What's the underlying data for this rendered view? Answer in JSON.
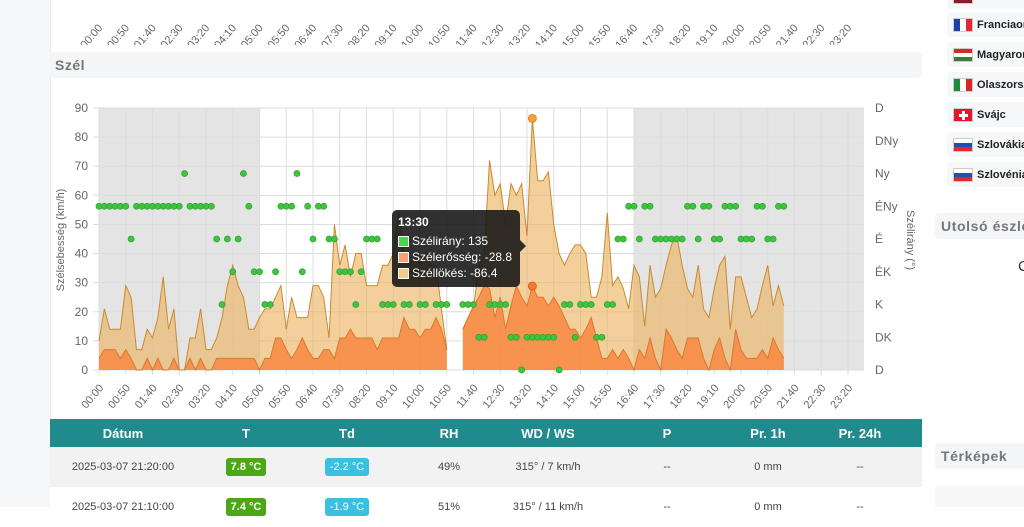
{
  "previous_chart": {
    "x_ticks": [
      "00:00",
      "00:50",
      "01:40",
      "02:30",
      "03:20",
      "04:10",
      "05:00",
      "05:50",
      "06:40",
      "07:30",
      "08:20",
      "09:10",
      "10:00",
      "10:50",
      "11:40",
      "12:30",
      "13:20",
      "14:10",
      "15:00",
      "15:50",
      "16:40",
      "17:30",
      "18:20",
      "19:10",
      "20:00",
      "20:50",
      "21:40",
      "22:30",
      "23:20"
    ]
  },
  "section": {
    "title": "Szél"
  },
  "chart_data": {
    "type": "area",
    "ylabel": "Szélsebesség (km/h)",
    "y2label": "Szélirány (°)",
    "ylim": [
      0,
      90
    ],
    "y_ticks": [
      0,
      10,
      20,
      30,
      40,
      50,
      60,
      70,
      80,
      90
    ],
    "y2_ticks": [
      "D",
      "DK",
      "K",
      "ÉK",
      "É",
      "ÉNy",
      "Ny",
      "DNy",
      "D"
    ],
    "y2_degrees": [
      180,
      135,
      90,
      45,
      0,
      315,
      270,
      225,
      180
    ],
    "x_ticks": [
      "00:00",
      "00:50",
      "01:40",
      "02:30",
      "03:20",
      "04:10",
      "05:00",
      "05:50",
      "06:40",
      "07:30",
      "08:20",
      "09:10",
      "10:00",
      "10:50",
      "11:40",
      "12:30",
      "13:20",
      "14:10",
      "15:00",
      "15:50",
      "16:40",
      "17:30",
      "18:20",
      "19:10",
      "20:00",
      "20:50",
      "21:40",
      "22:30",
      "23:20"
    ],
    "x_range": [
      "00:00",
      "23:50"
    ],
    "x_interval_minutes": 10,
    "grid": true,
    "night_shading": [
      [
        "00:00",
        "05:00"
      ],
      [
        "16:40",
        "23:50"
      ]
    ],
    "colors": {
      "direction": "#3ec43e",
      "speed": "#f7924a",
      "gust": "#edbd7a",
      "night": "#e4e4e4"
    },
    "series": [
      {
        "name": "Szélirány",
        "axis": "right",
        "kind": "scatter",
        "values": [
          315,
          315,
          315,
          315,
          315,
          315,
          0,
          315,
          315,
          315,
          315,
          315,
          315,
          315,
          315,
          315,
          270,
          315,
          315,
          315,
          315,
          315,
          0,
          90,
          0,
          45,
          0,
          270,
          315,
          45,
          45,
          90,
          90,
          45,
          315,
          315,
          315,
          270,
          45,
          315,
          0,
          315,
          315,
          0,
          0,
          45,
          45,
          45,
          90,
          45,
          0,
          0,
          0,
          90,
          90,
          90,
          45,
          90,
          90,
          45,
          90,
          90,
          45,
          90,
          90,
          90,
          null,
          null,
          90,
          90,
          90,
          135,
          135,
          90,
          90,
          90,
          90,
          135,
          135,
          180,
          135,
          135,
          135,
          135,
          135,
          135,
          180,
          90,
          90,
          135,
          90,
          90,
          90,
          135,
          135,
          90,
          90,
          0,
          0,
          315,
          315,
          0,
          315,
          315,
          0,
          0,
          0,
          0,
          0,
          0,
          315,
          315,
          0,
          315,
          315,
          0,
          0,
          315,
          315,
          315,
          0,
          0,
          0,
          315,
          315,
          0,
          0,
          315,
          315
        ]
      },
      {
        "name": "Szélerősség",
        "axis": "left",
        "kind": "area",
        "values": [
          4,
          7,
          7,
          7,
          4,
          7,
          4,
          0,
          0,
          4,
          0,
          4,
          0,
          0,
          4,
          0,
          0,
          4,
          0,
          4,
          0,
          0,
          4,
          4,
          4,
          4,
          4,
          4,
          4,
          4,
          0,
          4,
          4,
          11,
          11,
          7,
          4,
          7,
          11,
          7,
          4,
          4,
          7,
          7,
          4,
          11,
          11,
          14,
          11,
          11,
          11,
          11,
          7,
          11,
          11,
          11,
          11,
          18,
          14,
          14,
          11,
          14,
          14,
          18,
          14,
          7,
          null,
          null,
          14,
          18,
          22,
          25,
          29,
          28,
          18,
          25,
          14,
          22,
          29,
          25,
          22,
          28.8,
          25,
          25,
          22,
          25,
          22,
          18,
          14,
          14,
          11,
          14,
          18,
          11,
          4,
          4,
          7,
          4,
          7,
          4,
          0,
          7,
          4,
          11,
          4,
          0,
          14,
          11,
          7,
          4,
          11,
          11,
          11,
          4,
          0,
          7,
          11,
          4,
          0,
          14,
          7,
          4,
          4,
          4,
          7,
          4,
          11,
          7,
          4
        ]
      },
      {
        "name": "Széllökés",
        "axis": "left",
        "kind": "area",
        "values": [
          10,
          21,
          14,
          14,
          14,
          29,
          25,
          7,
          7,
          14,
          11,
          18,
          32,
          14,
          21,
          0,
          0,
          11,
          11,
          21,
          7,
          7,
          11,
          18,
          29,
          36,
          29,
          25,
          14,
          14,
          18,
          21,
          21,
          25,
          29,
          14,
          25,
          18,
          18,
          18,
          29,
          29,
          25,
          11,
          50,
          36,
          43,
          32,
          40,
          40,
          29,
          29,
          29,
          36,
          36,
          40,
          54,
          40,
          36,
          40,
          36,
          40,
          36,
          36,
          21,
          7,
          null,
          null,
          14,
          18,
          21,
          36,
          40,
          72,
          60,
          64,
          50,
          64,
          60,
          64,
          46,
          86.4,
          65,
          65,
          68,
          50,
          40,
          36,
          40,
          43,
          43,
          40,
          25,
          25,
          32,
          54,
          29,
          32,
          28,
          21,
          36,
          32,
          15,
          36,
          25,
          28,
          36,
          43,
          46,
          36,
          28,
          25,
          36,
          21,
          18,
          28,
          36,
          39,
          14,
          32,
          32,
          25,
          18,
          21,
          29,
          36,
          22,
          29,
          22
        ]
      }
    ]
  },
  "tooltip": {
    "time": "13:30",
    "rows": [
      {
        "label": "Szélirány: 135",
        "color": "#4cd44c"
      },
      {
        "label": "Szélerősség: -28.8",
        "color": "#f9a27a"
      },
      {
        "label": "Széllökés: -86.4",
        "color": "#f3c990"
      }
    ]
  },
  "table": {
    "headers": [
      "Dátum",
      "T",
      "Td",
      "RH",
      "WD / WS",
      "P",
      "Pr. 1h",
      "Pr. 24h"
    ],
    "rows": [
      {
        "date": "2025-03-07 21:20:00",
        "t": "7.8 °C",
        "td": "-2.2 °C",
        "rh": "49%",
        "wdws": "315° / 7 km/h",
        "p": "--",
        "pr1h": "0 mm",
        "pr24h": "--"
      },
      {
        "date": "2025-03-07 21:10:00",
        "t": "7.4 °C",
        "td": "-1.9 °C",
        "rh": "51%",
        "wdws": "315° / 11 km/h",
        "p": "--",
        "pr1h": "0 mm",
        "pr24h": "--"
      }
    ]
  },
  "sidebar": {
    "countries": [
      {
        "label": "Franciaország",
        "flag": "france-flag-icon"
      },
      {
        "label": "Magyarország",
        "flag": "hungary-flag-icon"
      },
      {
        "label": "Olaszország",
        "flag": "italy-flag-icon"
      },
      {
        "label": "Svájc",
        "flag": "switzerland-flag-icon"
      },
      {
        "label": "Szlovákia",
        "flag": "slovakia-flag-icon"
      },
      {
        "label": "Szlovénia",
        "flag": "slovenia-flag-icon"
      }
    ],
    "last_obs_title": "Utolsó észlelések",
    "last_obs_text": "C",
    "maps_title": "Térképek"
  }
}
